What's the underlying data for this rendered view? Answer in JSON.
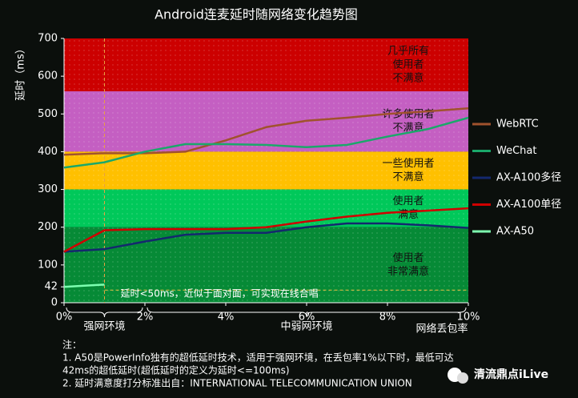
{
  "chart_data": {
    "type": "line",
    "title": "Android连麦延时随网络变化趋势图",
    "y_label": "延时（ms）",
    "x_label": "网络丢包率",
    "xlim": [
      0,
      10
    ],
    "ylim": [
      0,
      700
    ],
    "xticks": [
      {
        "value": 0,
        "label": "0%"
      },
      {
        "value": 2,
        "label": "2%"
      },
      {
        "value": 4,
        "label": "4%"
      },
      {
        "value": 6,
        "label": "6%"
      },
      {
        "value": 8,
        "label": "8%"
      },
      {
        "value": 10,
        "label": "10%"
      }
    ],
    "yticks": [
      0,
      42,
      100,
      200,
      300,
      400,
      500,
      600,
      700
    ],
    "bands": [
      {
        "from": 560,
        "to": 700,
        "color": "#cc0000",
        "label": [
          "几乎所有",
          "使用者",
          "不满意"
        ]
      },
      {
        "from": 400,
        "to": 560,
        "color": "#c45fc2",
        "label": [
          "许多使用者",
          "不满意"
        ]
      },
      {
        "from": 300,
        "to": 400,
        "color": "#ffc000",
        "label": [
          "一些使用者",
          "不满意"
        ]
      },
      {
        "from": 200,
        "to": 300,
        "color": "#00c85a",
        "label": [
          "使用者",
          "满意"
        ]
      },
      {
        "from": 0,
        "to": 200,
        "color": "#068a36",
        "label": [
          "使用者",
          "非常满意"
        ]
      }
    ],
    "series": [
      {
        "name": "WebRTC",
        "color": "#a0522d",
        "x": [
          0,
          1,
          2,
          3,
          4,
          5,
          6,
          7,
          8,
          9,
          10
        ],
        "values": [
          392,
          396,
          396,
          400,
          430,
          465,
          482,
          490,
          500,
          507,
          515
        ]
      },
      {
        "name": "WeChat",
        "color": "#1aa86a",
        "x": [
          0,
          1,
          2,
          3,
          4,
          5,
          6,
          7,
          8,
          9,
          10
        ],
        "values": [
          358,
          372,
          400,
          420,
          420,
          418,
          412,
          418,
          440,
          460,
          490
        ]
      },
      {
        "name": "AX-A100多径",
        "color": "#14286e",
        "x": [
          0,
          1,
          2,
          3,
          4,
          5,
          6,
          7,
          8,
          9,
          10
        ],
        "values": [
          135,
          142,
          162,
          180,
          185,
          185,
          200,
          210,
          210,
          205,
          198
        ]
      },
      {
        "name": "AX-A100单径",
        "color": "#d00000",
        "x": [
          0,
          1,
          2,
          3,
          4,
          5,
          6,
          7,
          8,
          9,
          10
        ],
        "values": [
          135,
          192,
          195,
          195,
          195,
          200,
          215,
          228,
          238,
          244,
          250
        ]
      },
      {
        "name": "AX-A50",
        "color": "#7dffb0",
        "x": [
          0,
          0.5,
          1
        ],
        "values": [
          42,
          45,
          48
        ]
      }
    ],
    "threshold": {
      "x": 1,
      "y": 42,
      "label": "延时<50ms，近似于面对面，可实现在线合唱"
    },
    "regions": [
      {
        "label": "强网环境",
        "from": 0,
        "to": 2
      },
      {
        "label": "中弱网环境",
        "from": 2,
        "to": 10
      }
    ],
    "notes": [
      "注：",
      "1. A50是PowerInfo独有的超低延时技术，适用于强网环境，在丢包率1%以下时，最低可达",
      "42ms的超低延时(超低延时的定义为延时<=100ms)",
      "2. 延时满意度打分标准出自：INTERNATIONAL TELECOMMUNICATION UNION"
    ]
  },
  "watermark": "清流鼎点iLive"
}
